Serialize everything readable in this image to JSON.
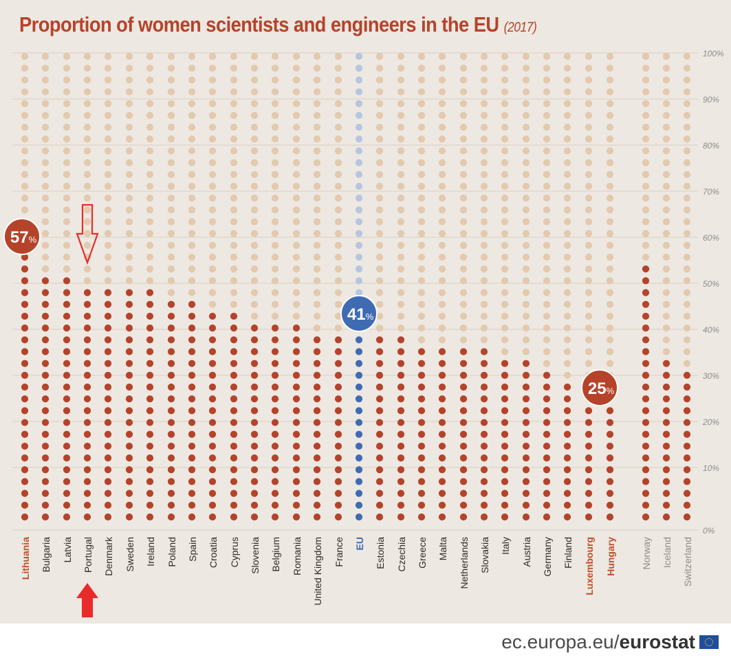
{
  "title": {
    "main": "Proportion of women scientists and engineers in the EU",
    "year": "(2017)"
  },
  "footer": {
    "domain": "ec.europa.eu/",
    "brand": "eurostat",
    "flag_icon": "eu-flag-icon"
  },
  "colors": {
    "filled": "#b5432a",
    "empty": "#e3c9ae",
    "eu_filled": "#3f6bb3",
    "eu_empty": "#b7c6e0",
    "highlight_label": "#c0502a",
    "grey_label": "#8c8c8c",
    "arrow": "#e82b2b"
  },
  "callouts": [
    {
      "country": "Lithuania",
      "text": "57",
      "unit": "%",
      "color": "#b5432a"
    },
    {
      "country": "EU",
      "text": "41",
      "unit": "%",
      "color": "#3f6bb3"
    },
    {
      "country": "Luxembourg",
      "text": "25",
      "unit": "%",
      "color": "#b5432a"
    }
  ],
  "arrows": [
    {
      "country": "Portugal",
      "style": "outline",
      "icon": "arrow-down-outline-icon"
    },
    {
      "country": "Portugal",
      "style": "solid",
      "icon": "arrow-up-solid-icon"
    }
  ],
  "chart_data": {
    "type": "bar",
    "style": "dot-columns",
    "title": "Proportion of women scientists and engineers in the EU (2017)",
    "ylim": [
      0,
      100
    ],
    "yticks": [
      "0%",
      "10%",
      "20%",
      "30%",
      "40%",
      "50%",
      "60%",
      "70%",
      "80%",
      "90%",
      "100%"
    ],
    "grid": true,
    "categories": [
      "Lithuania",
      "Bulgaria",
      "Latvia",
      "Portugal",
      "Denmark",
      "Sweden",
      "Ireland",
      "Poland",
      "Spain",
      "Croatia",
      "Cyprus",
      "Slovenia",
      "Belgium",
      "Romania",
      "United Kingdom",
      "France",
      "EU",
      "Estonia",
      "Czechia",
      "Greece",
      "Malta",
      "Netherlands",
      "Slovakia",
      "Italy",
      "Austria",
      "Germany",
      "Finland",
      "Luxembourg",
      "Hungary",
      "Norway",
      "Iceland",
      "Switzerland"
    ],
    "values": [
      57,
      53,
      53,
      51,
      50,
      49,
      49,
      48,
      48,
      46,
      46,
      43,
      43,
      42,
      41,
      41,
      41,
      39,
      39,
      38,
      38,
      38,
      38,
      35,
      34,
      33,
      29,
      25,
      25,
      54,
      36,
      33
    ],
    "label_styles": [
      "highlight",
      "normal",
      "normal",
      "normal",
      "normal",
      "normal",
      "normal",
      "normal",
      "normal",
      "normal",
      "normal",
      "normal",
      "normal",
      "normal",
      "normal",
      "normal",
      "eu",
      "normal",
      "normal",
      "normal",
      "normal",
      "normal",
      "normal",
      "normal",
      "normal",
      "normal",
      "normal",
      "highlight",
      "highlight",
      "grey",
      "grey",
      "grey"
    ]
  }
}
